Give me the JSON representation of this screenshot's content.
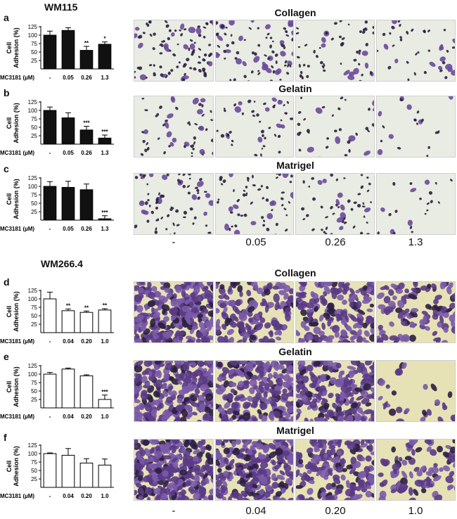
{
  "figure": {
    "cell_lines": [
      {
        "name": "WM115",
        "x_tick_labels": [
          "-",
          "0.05",
          "0.26",
          "1.3"
        ],
        "bottom_labels": [
          "-",
          "0.05",
          "0.26",
          "1.3"
        ],
        "bar_style": "filled",
        "bar_color": "#111111",
        "panels": [
          {
            "letter": "a",
            "condition": "Collagen",
            "values": [
              100,
              114,
              55,
              73
            ],
            "errors": [
              12,
              8,
              12,
              7
            ],
            "significance": [
              "",
              "",
              "**",
              "*"
            ]
          },
          {
            "letter": "b",
            "condition": "Gelatin",
            "values": [
              100,
              78,
              42,
              18
            ],
            "errors": [
              10,
              15,
              11,
              9
            ],
            "significance": [
              "",
              "",
              "***",
              "***"
            ]
          },
          {
            "letter": "c",
            "condition": "Matrigel",
            "values": [
              100,
              97,
              90,
              4
            ],
            "errors": [
              14,
              18,
              17,
              9
            ],
            "significance": [
              "",
              "",
              "",
              "***"
            ]
          }
        ]
      },
      {
        "name": "WM266.4",
        "x_tick_labels": [
          "-",
          "0.04",
          "0.20",
          "1.0"
        ],
        "bottom_labels": [
          "-",
          "0.04",
          "0.20",
          "1.0"
        ],
        "bar_style": "open",
        "bar_color": "#ffffff",
        "panels": [
          {
            "letter": "d",
            "condition": "Collagen",
            "values": [
              100,
              65,
              60,
              67
            ],
            "errors": [
              20,
              5,
              4,
              4
            ],
            "significance": [
              "",
              "**",
              "**",
              "**"
            ]
          },
          {
            "letter": "e",
            "condition": "Gelatin",
            "values": [
              100,
              115,
              95,
              25
            ],
            "errors": [
              5,
              3,
              3,
              13
            ],
            "significance": [
              "",
              "",
              "",
              "***"
            ]
          },
          {
            "letter": "f",
            "condition": "Matrigel",
            "values": [
              100,
              95,
              72,
              66
            ],
            "errors": [
              2,
              20,
              13,
              18
            ],
            "significance": [
              "",
              "",
              "",
              ""
            ]
          }
        ]
      }
    ],
    "y_axis_label_line1": "Cell",
    "y_axis_label_line2": "Adhesion (%)",
    "y_ticks": [
      "25",
      "50",
      "75",
      "100",
      "125"
    ],
    "dose_label": "MC3181 (µM)",
    "image_tint": {
      "wm115_background": "#e9ece3",
      "wm266_background": "#e6e2b6",
      "cell_color": "#5a3a86",
      "dark_cell_color": "#2a1f3f"
    }
  },
  "chart_data": [
    {
      "type": "bar",
      "title": "",
      "ylabel": "Cell Adhesion (%)",
      "xlabel": "MC3181 (µM)",
      "categories": [
        "-",
        "0.05",
        "0.26",
        "1.3"
      ],
      "values": [
        100,
        114,
        55,
        73
      ],
      "ylim": [
        0,
        125
      ]
    },
    {
      "type": "bar",
      "title": "",
      "ylabel": "Cell Adhesion (%)",
      "xlabel": "MC3181 (µM)",
      "categories": [
        "-",
        "0.05",
        "0.26",
        "1.3"
      ],
      "values": [
        100,
        78,
        42,
        18
      ],
      "ylim": [
        0,
        125
      ]
    },
    {
      "type": "bar",
      "title": "",
      "ylabel": "Cell Adhesion (%)",
      "xlabel": "MC3181 (µM)",
      "categories": [
        "-",
        "0.05",
        "0.26",
        "1.3"
      ],
      "values": [
        100,
        97,
        90,
        4
      ],
      "ylim": [
        0,
        125
      ]
    },
    {
      "type": "bar",
      "title": "",
      "ylabel": "Cell Adhesion (%)",
      "xlabel": "MC3181 (µM)",
      "categories": [
        "-",
        "0.04",
        "0.20",
        "1.0"
      ],
      "values": [
        100,
        65,
        60,
        67
      ],
      "ylim": [
        0,
        125
      ]
    },
    {
      "type": "bar",
      "title": "",
      "ylabel": "Cell Adhesion (%)",
      "xlabel": "MC3181 (µM)",
      "categories": [
        "-",
        "0.04",
        "0.20",
        "1.0"
      ],
      "values": [
        100,
        115,
        95,
        25
      ],
      "ylim": [
        0,
        125
      ]
    },
    {
      "type": "bar",
      "title": "",
      "ylabel": "Cell Adhesion (%)",
      "xlabel": "MC3181 (µM)",
      "categories": [
        "-",
        "0.04",
        "0.20",
        "1.0"
      ],
      "values": [
        100,
        95,
        72,
        66
      ],
      "ylim": [
        0,
        125
      ]
    }
  ]
}
